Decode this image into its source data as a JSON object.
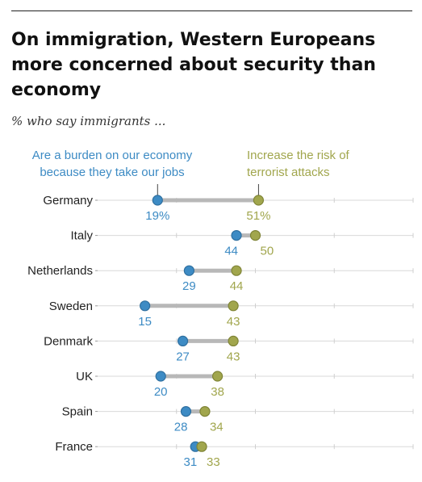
{
  "chart_data": {
    "type": "dot",
    "title": "On immigration, Western Europeans more concerned about security than economy",
    "subtitle": "% who say immigrants ...",
    "categories": [
      "Germany",
      "Italy",
      "Netherlands",
      "Sweden",
      "Denmark",
      "UK",
      "Spain",
      "France"
    ],
    "series": [
      {
        "name": "Are a burden on our economy because they take our jobs",
        "color": "#3d8bc4",
        "values": [
          19,
          44,
          29,
          15,
          27,
          20,
          28,
          31
        ],
        "labels": [
          "19%",
          "44",
          "29",
          "15",
          "27",
          "20",
          "28",
          "31"
        ]
      },
      {
        "name": "Increase the risk of terrorist attacks",
        "color": "#a1a64d",
        "values": [
          51,
          50,
          44,
          43,
          43,
          38,
          34,
          33
        ],
        "labels": [
          "51%",
          "50",
          "44",
          "43",
          "43",
          "38",
          "34",
          "33"
        ]
      }
    ],
    "xlim": [
      0,
      100
    ],
    "grid": true,
    "legend": "top"
  }
}
